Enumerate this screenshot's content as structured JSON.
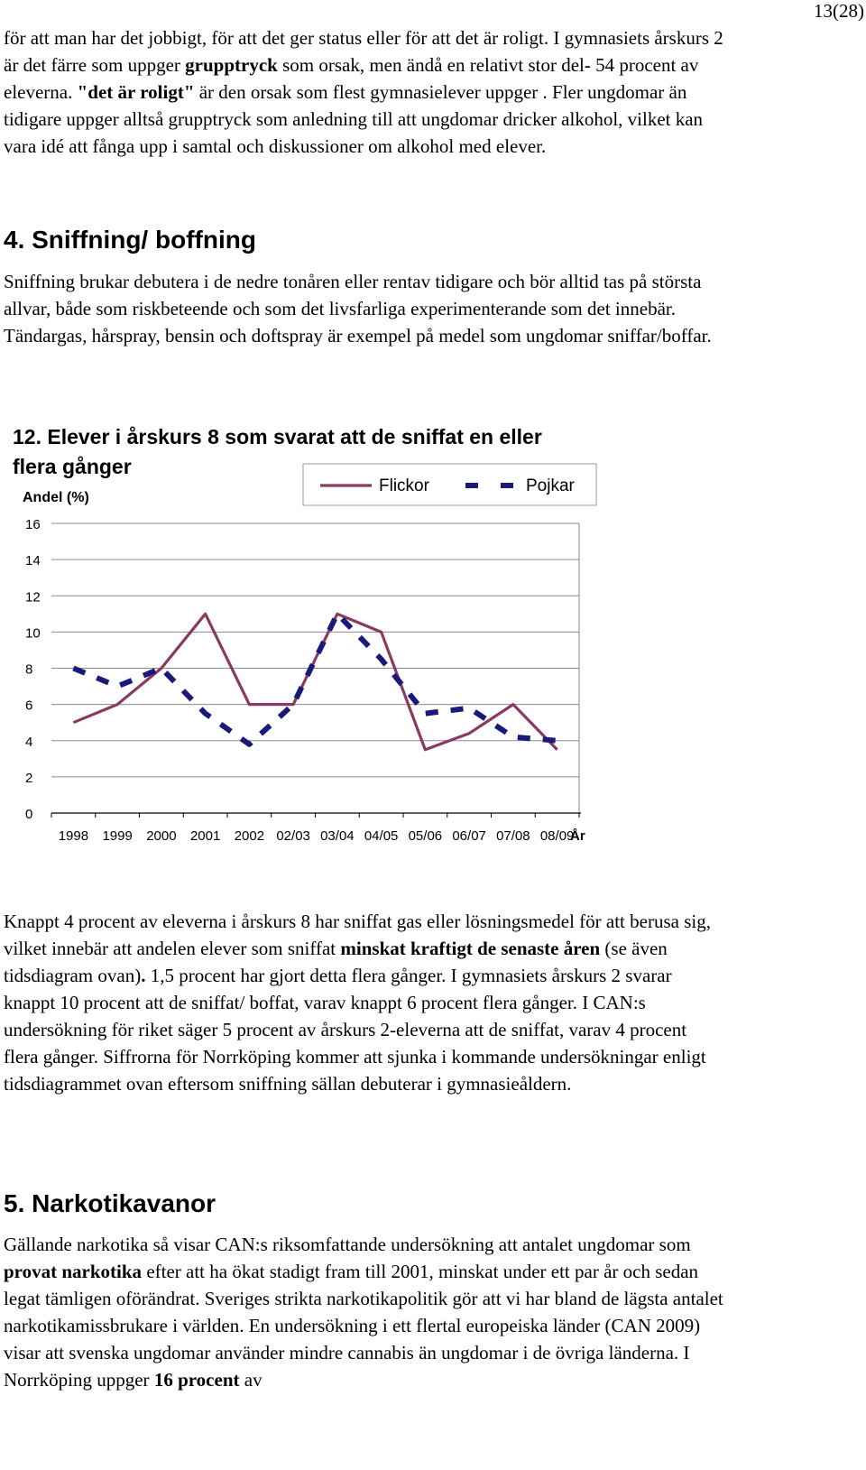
{
  "page_number": "13(28)",
  "intro": [
    {
      "text": "för att man har det jobbigt, för att det ger status eller för att det är roligt. I "
    },
    {
      "text": "gymnasiets årskurs 2 är det färre som uppger "
    },
    {
      "text": "grupptryck",
      "bold": true
    },
    {
      "text": " som orsak, men ändå en relativt stor del- 54 procent av eleverna. "
    },
    {
      "text": "\"det är roligt\"",
      "bold": true
    },
    {
      "text": " är den orsak som flest gymnasielever uppger . Fler ungdomar än tidigare uppger alltså grupptryck som anledning till att ungdomar dricker alkohol, vilket kan vara idé att fånga upp i samtal och diskussioner om alkohol med elever."
    }
  ],
  "section4": {
    "heading": "4. Sniffning/ boffning",
    "paragraph": "Sniffning brukar debutera i de nedre tonåren eller rentav tidigare och bör alltid tas på största allvar, både som riskbeteende och som det livsfarliga experimenterande som det innebär. Tändargas, hårspray, bensin och doftspray är exempel på medel som ungdomar sniffar/boffar."
  },
  "chart_data": {
    "type": "line",
    "title": "12. Elever i årskurs 8 som svarat att de sniffat en eller flera gånger",
    "ylabel": "Andel (%)",
    "xlabel": "År",
    "categories": [
      "1998",
      "1999",
      "2000",
      "2001",
      "2002",
      "02/03",
      "03/04",
      "04/05",
      "05/06",
      "06/07",
      "07/08",
      "08/09"
    ],
    "ylim": [
      0,
      16
    ],
    "yticks": [
      0,
      2,
      4,
      6,
      8,
      10,
      12,
      14,
      16
    ],
    "grid": true,
    "legend_position": "top-right",
    "series": [
      {
        "name": "Flickor",
        "values": [
          5,
          6,
          8,
          11,
          6,
          6,
          11,
          10,
          3.5,
          4.4,
          6,
          3.5
        ],
        "color": "#8a3a62",
        "style": "solid"
      },
      {
        "name": "Pojkar",
        "values": [
          8,
          7,
          8,
          5.5,
          3.8,
          6,
          11,
          8.5,
          5.5,
          5.8,
          4.2,
          4
        ],
        "color": "#1a1a7a",
        "style": "dashed"
      }
    ]
  },
  "body_after_chart": [
    {
      "text": "Knappt 4 procent av eleverna i årskurs 8 har sniffat gas eller lösningsmedel för att berusa sig, vilket innebär att andelen elever som sniffat "
    },
    {
      "text": "minskat kraftigt de senaste åren",
      "bold": true
    },
    {
      "text": " (se även tidsdiagram ovan)"
    },
    {
      "text": ".",
      "bold": true
    },
    {
      "text": "  1,5  procent har gjort detta flera gånger. I  gymnasiets årskurs 2 svarar knappt 10 procent att de sniffat/ boffat, varav knappt 6 procent flera gånger.  I CAN:s undersökning för riket säger 5 procent av årskurs 2-eleverna att de sniffat, varav 4 procent flera gånger. Siffrorna för Norrköping kommer att sjunka i kommande undersökningar enligt tidsdiagrammet ovan eftersom sniffning sällan debuterar i gymnasieåldern."
    }
  ],
  "section5": {
    "heading": "5. Narkotikavanor",
    "paragraph": [
      {
        "text": "Gällande narkotika så visar CAN:s riksomfattande undersökning att antalet ungdomar som "
      },
      {
        "text": "provat narkotika",
        "bold": true
      },
      {
        "text": " efter att ha ökat stadigt fram till 2001, minskat under ett par år och sedan legat tämligen oförändrat. Sveriges strikta narkotikapolitik gör att vi har bland de lägsta antalet narkotikamissbrukare i världen. En undersökning i ett flertal europeiska länder (CAN 2009) visar att svenska ungdomar använder mindre cannabis än ungdomar i de övriga länderna.  I Norrköping uppger "
      },
      {
        "text": "16 procent",
        "bold": true
      },
      {
        "text": " av"
      }
    ]
  }
}
